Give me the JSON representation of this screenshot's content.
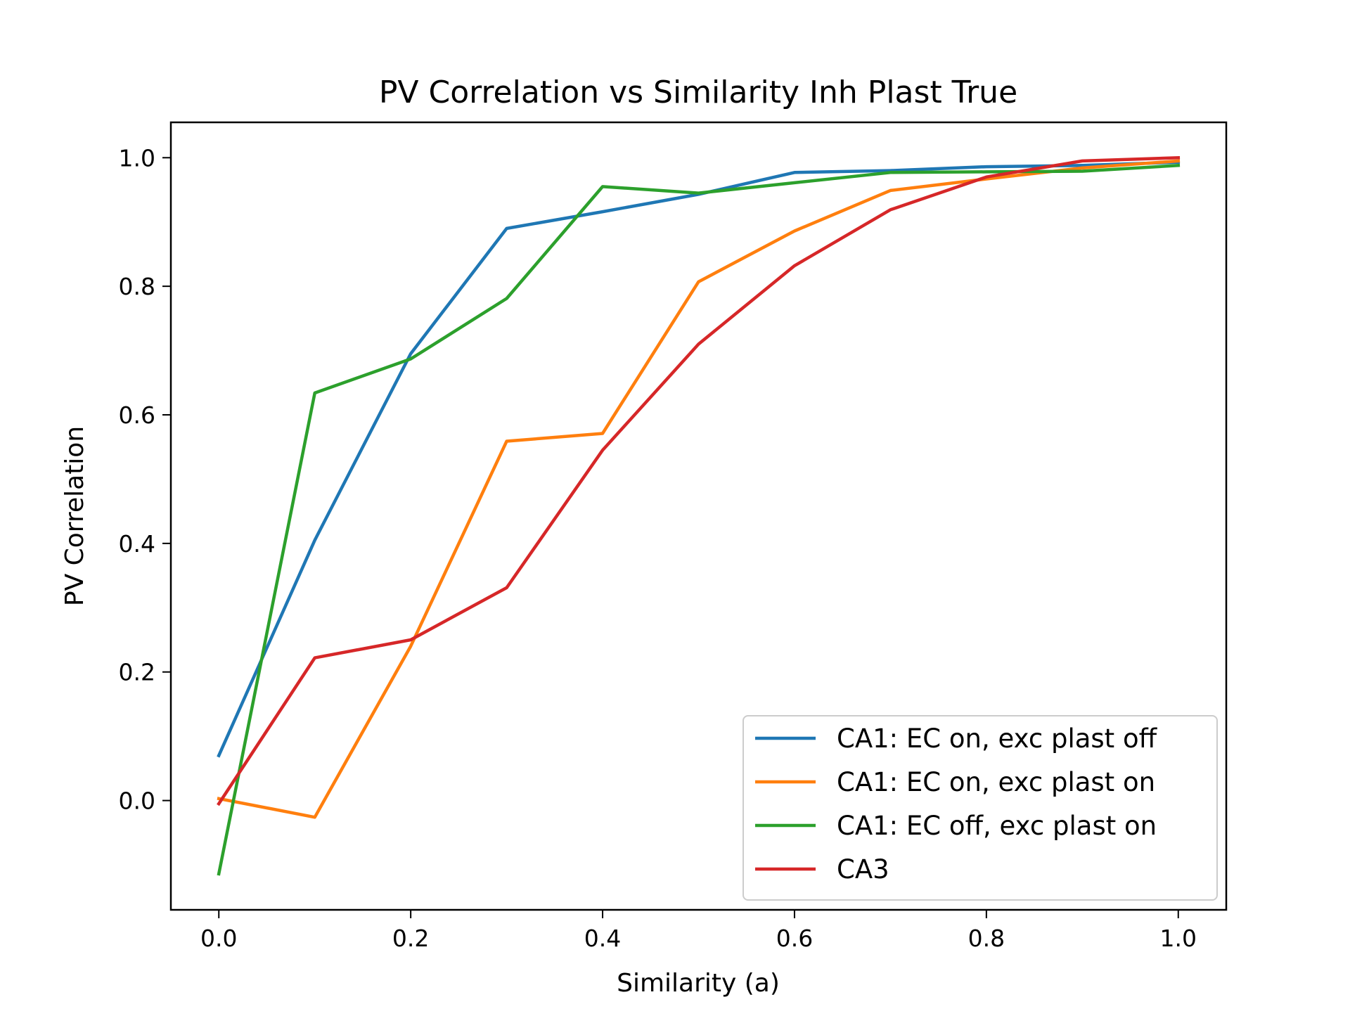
{
  "chart_data": {
    "type": "line",
    "title": "PV Correlation vs Similarity Inh Plast True",
    "xlabel": "Similarity (a)",
    "ylabel": "PV Correlation",
    "xlim": [
      -0.05,
      1.05
    ],
    "ylim": [
      -0.17,
      1.055
    ],
    "xticks": [
      0.0,
      0.2,
      0.4,
      0.6,
      0.8,
      1.0
    ],
    "xtick_labels": [
      "0.0",
      "0.2",
      "0.4",
      "0.6",
      "0.8",
      "1.0"
    ],
    "yticks": [
      0.0,
      0.2,
      0.4,
      0.6,
      0.8,
      1.0
    ],
    "ytick_labels": [
      "0.0",
      "0.2",
      "0.4",
      "0.6",
      "0.8",
      "1.0"
    ],
    "grid": false,
    "legend_position": "lower-right",
    "x": [
      0.0,
      0.1,
      0.2,
      0.3,
      0.4,
      0.5,
      0.6,
      0.7,
      0.8,
      0.9,
      1.0
    ],
    "series": [
      {
        "name": "CA1: EC on, exc plast off",
        "color": "#1f77b4",
        "values": [
          0.07,
          0.405,
          0.695,
          0.89,
          0.916,
          0.943,
          0.977,
          0.98,
          0.986,
          0.988,
          0.993
        ]
      },
      {
        "name": "CA1: EC on, exc plast on",
        "color": "#ff7f0e",
        "values": [
          0.003,
          -0.026,
          0.24,
          0.559,
          0.571,
          0.807,
          0.886,
          0.949,
          0.967,
          0.984,
          0.995
        ]
      },
      {
        "name": "CA1: EC off, exc plast on",
        "color": "#2ca02c",
        "values": [
          -0.114,
          0.634,
          0.687,
          0.781,
          0.955,
          0.945,
          0.961,
          0.977,
          0.978,
          0.979,
          0.988
        ]
      },
      {
        "name": "CA3",
        "color": "#d62728",
        "values": [
          -0.005,
          0.222,
          0.25,
          0.331,
          0.545,
          0.71,
          0.832,
          0.919,
          0.97,
          0.995,
          1.0
        ]
      }
    ]
  }
}
